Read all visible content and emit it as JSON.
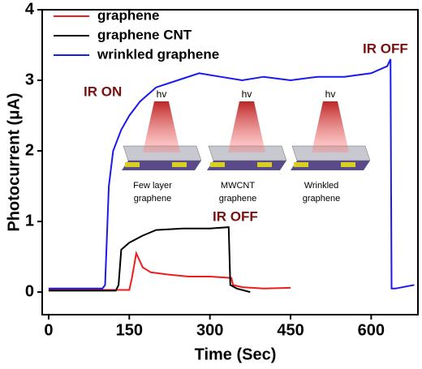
{
  "chart_data": {
    "type": "line",
    "xlabel": "Time (Sec)",
    "ylabel": "Photocurrent (μA)",
    "xlim": [
      -12,
      687
    ],
    "ylim": [
      -0.32,
      4
    ],
    "xticks": [
      0,
      150,
      300,
      450,
      600
    ],
    "yticks": [
      0,
      1,
      2,
      3,
      4
    ],
    "legend": "upper left",
    "series": [
      {
        "name": "graphene",
        "color": "#ee1c1c",
        "x": [
          0,
          150,
          155,
          163,
          175,
          190,
          220,
          260,
          300,
          340,
          343,
          360,
          400,
          450
        ],
        "values": [
          0.03,
          0.03,
          0.2,
          0.55,
          0.35,
          0.28,
          0.25,
          0.22,
          0.22,
          0.2,
          0.1,
          0.07,
          0.05,
          0.06
        ]
      },
      {
        "name": "graphene CNT",
        "color": "#000000",
        "x": [
          0,
          125,
          130,
          135,
          150,
          175,
          200,
          250,
          300,
          335,
          338,
          350,
          375
        ],
        "values": [
          0.02,
          0.02,
          0.1,
          0.6,
          0.7,
          0.8,
          0.88,
          0.9,
          0.9,
          0.92,
          0.1,
          0.05,
          0.0
        ]
      },
      {
        "name": "wrinkled graphene",
        "color": "#1a1aee",
        "x": [
          0,
          100,
          105,
          112,
          120,
          135,
          150,
          170,
          200,
          240,
          280,
          320,
          360,
          400,
          450,
          500,
          550,
          600,
          630,
          636,
          638,
          645,
          680
        ],
        "values": [
          0.05,
          0.05,
          0.1,
          1.5,
          2.0,
          2.3,
          2.5,
          2.7,
          2.9,
          3.0,
          3.1,
          3.05,
          3.0,
          3.05,
          3.0,
          3.05,
          3.05,
          3.1,
          3.2,
          3.3,
          0.05,
          0.05,
          0.1
        ]
      }
    ],
    "annotations": [
      "IR ON",
      "IR OFF",
      "IR OFF"
    ],
    "inset": {
      "symbol": [
        "hv",
        "hv",
        "hv"
      ],
      "captions": [
        [
          "Few layer",
          "graphene"
        ],
        [
          "MWCNT",
          "graphene"
        ],
        [
          "Wrinkled",
          "graphene"
        ]
      ]
    }
  }
}
